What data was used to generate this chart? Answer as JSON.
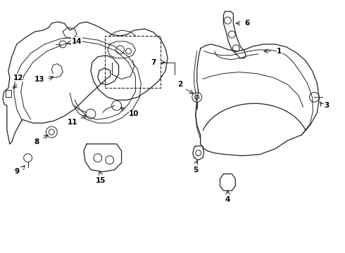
{
  "background_color": "#ffffff",
  "line_color": "#222222",
  "label_color": "#000000",
  "figsize": [
    4.9,
    3.6
  ],
  "dpi": 100,
  "xlim": [
    0,
    4.9
  ],
  "ylim": [
    0,
    3.6
  ]
}
